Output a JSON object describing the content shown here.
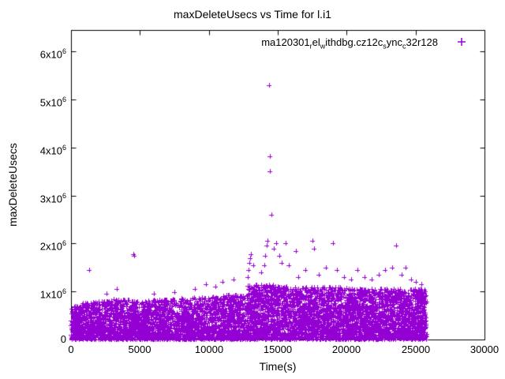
{
  "chart_data": {
    "type": "scatter",
    "title": "maxDeleteUsecs vs Time for l.i1",
    "xlabel": "Time(s)",
    "ylabel": "maxDeleteUsecs",
    "xlim": [
      0,
      30000
    ],
    "ylim": [
      0,
      6450000
    ],
    "grid": false,
    "legend_position": "top-right-inside",
    "xticks": [
      0,
      5000,
      10000,
      15000,
      20000,
      25000,
      30000
    ],
    "yticks": [
      {
        "value": 0,
        "base": "0",
        "exp": ""
      },
      {
        "value": 1000000,
        "base": "1x10",
        "exp": "6"
      },
      {
        "value": 2000000,
        "base": "2x10",
        "exp": "6"
      },
      {
        "value": 3000000,
        "base": "3x10",
        "exp": "6"
      },
      {
        "value": 4000000,
        "base": "4x10",
        "exp": "6"
      },
      {
        "value": 5000000,
        "base": "5x10",
        "exp": "6"
      },
      {
        "value": 6000000,
        "base": "6x10",
        "exp": "6"
      }
    ],
    "series": [
      {
        "name": "ma120301_rel_withdbg.cz12c_sync_c32r128",
        "label_segments": [
          {
            "text": "ma120301",
            "sub": false
          },
          {
            "text": "r",
            "sub": true
          },
          {
            "text": "el",
            "sub": false
          },
          {
            "text": "w",
            "sub": true
          },
          {
            "text": "ithdbg.cz12c",
            "sub": false
          },
          {
            "text": "s",
            "sub": true
          },
          {
            "text": "ync",
            "sub": false
          },
          {
            "text": "c",
            "sub": true
          },
          {
            "text": "32r128",
            "sub": false
          }
        ],
        "color": "#9400d3",
        "marker": "plus",
        "seed": 1337,
        "cloud_exponent": 1.35,
        "cloud_segments": [
          {
            "x0": 0,
            "x1": 1000,
            "env0": 650000,
            "env1": 780000,
            "n": 260
          },
          {
            "x0": 1000,
            "x1": 3000,
            "env0": 760000,
            "env1": 820000,
            "n": 480
          },
          {
            "x0": 3000,
            "x1": 5000,
            "env0": 850000,
            "env1": 820000,
            "n": 480
          },
          {
            "x0": 5000,
            "x1": 8000,
            "env0": 800000,
            "env1": 850000,
            "n": 700
          },
          {
            "x0": 8000,
            "x1": 12800,
            "env0": 860000,
            "env1": 950000,
            "n": 1150
          },
          {
            "x0": 12800,
            "x1": 16000,
            "env0": 1150000,
            "env1": 1120000,
            "n": 950
          },
          {
            "x0": 16000,
            "x1": 20000,
            "env0": 1100000,
            "env1": 1080000,
            "n": 1150
          },
          {
            "x0": 20000,
            "x1": 25800,
            "env0": 1060000,
            "env1": 1050000,
            "n": 1700
          }
        ],
        "outliers": [
          [
            1300,
            1450000
          ],
          [
            2600,
            950000
          ],
          [
            3300,
            1050000
          ],
          [
            4500,
            1780000
          ],
          [
            4560,
            1740000
          ],
          [
            6000,
            950000
          ],
          [
            7500,
            980000
          ],
          [
            9000,
            1050000
          ],
          [
            9800,
            1150000
          ],
          [
            10500,
            1100000
          ],
          [
            11000,
            1200000
          ],
          [
            11800,
            1250000
          ],
          [
            12850,
            1300000
          ],
          [
            12900,
            1450000
          ],
          [
            12950,
            1600000
          ],
          [
            13000,
            1700000
          ],
          [
            13060,
            1780000
          ],
          [
            13200,
            1550000
          ],
          [
            13800,
            1400000
          ],
          [
            14000,
            1550000
          ],
          [
            14100,
            1750000
          ],
          [
            14200,
            1950000
          ],
          [
            14260,
            2050000
          ],
          [
            14350,
            5300000
          ],
          [
            14400,
            3820000
          ],
          [
            14450,
            3500000
          ],
          [
            14520,
            2600000
          ],
          [
            14700,
            1900000
          ],
          [
            14900,
            2000000
          ],
          [
            15100,
            1750000
          ],
          [
            15300,
            1600000
          ],
          [
            15600,
            2000000
          ],
          [
            15800,
            1550000
          ],
          [
            16300,
            1850000
          ],
          [
            16500,
            1300000
          ],
          [
            17000,
            1450000
          ],
          [
            17500,
            2050000
          ],
          [
            17620,
            1900000
          ],
          [
            18000,
            1350000
          ],
          [
            18500,
            1500000
          ],
          [
            19000,
            2000000
          ],
          [
            19300,
            1450000
          ],
          [
            19800,
            1300000
          ],
          [
            20300,
            1250000
          ],
          [
            20800,
            1450000
          ],
          [
            21300,
            1300000
          ],
          [
            21800,
            1250000
          ],
          [
            22300,
            1350000
          ],
          [
            22800,
            1450000
          ],
          [
            23300,
            1500000
          ],
          [
            23600,
            1950000
          ],
          [
            24000,
            1350000
          ],
          [
            24300,
            1500000
          ],
          [
            24700,
            1250000
          ],
          [
            25000,
            1200000
          ],
          [
            25400,
            1150000
          ]
        ]
      }
    ]
  }
}
